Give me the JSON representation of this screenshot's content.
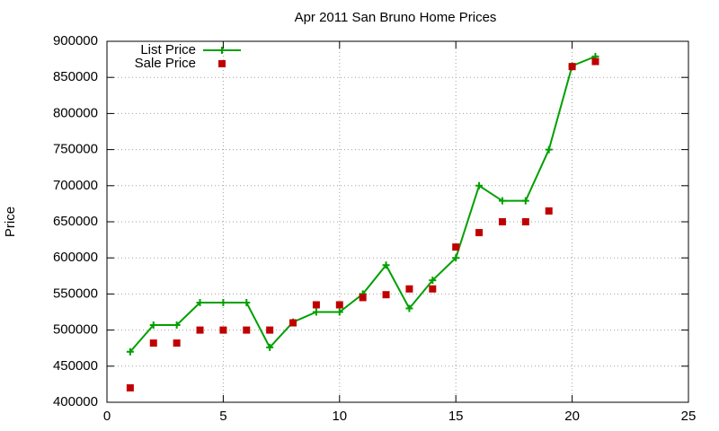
{
  "chart_data": {
    "type": "line",
    "title": "Apr 2011 San Bruno Home Prices",
    "y_label": "Price",
    "x": [
      1,
      2,
      3,
      4,
      5,
      6,
      7,
      8,
      9,
      10,
      11,
      12,
      13,
      14,
      15,
      16,
      17,
      18,
      19,
      20,
      21
    ],
    "series": [
      {
        "name": "List Price",
        "color": "#00a000",
        "style": "linespoints",
        "values": [
          470000,
          507000,
          507000,
          538000,
          538000,
          538000,
          476000,
          511000,
          525000,
          525000,
          550000,
          590000,
          530000,
          569000,
          600000,
          700000,
          679000,
          679000,
          750000,
          866000,
          879000
        ]
      },
      {
        "name": "Sale Price",
        "color": "#c00000",
        "style": "points",
        "values": [
          420000,
          482000,
          482000,
          500000,
          500000,
          500000,
          500000,
          510000,
          535000,
          535000,
          545000,
          549000,
          557000,
          557000,
          615000,
          635000,
          650000,
          650000,
          665000,
          865000,
          872000
        ]
      }
    ],
    "xlim": [
      0,
      25
    ],
    "xticks": [
      0,
      5,
      10,
      15,
      20,
      25
    ],
    "ylim": [
      400000,
      900000
    ],
    "yticks": [
      400000,
      450000,
      500000,
      550000,
      600000,
      650000,
      700000,
      750000,
      800000,
      850000,
      900000
    ],
    "grid": true,
    "legend": "top-left"
  }
}
